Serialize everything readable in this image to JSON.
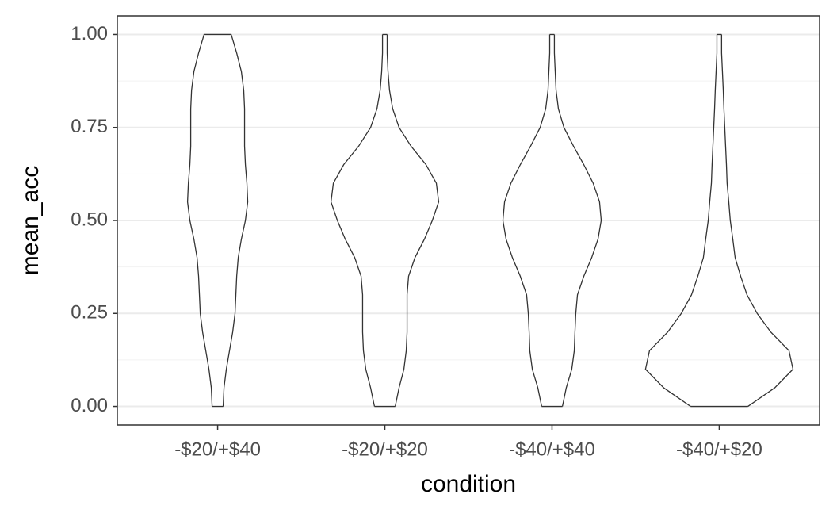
{
  "chart_data": {
    "type": "violin",
    "x_label": "condition",
    "y_label": "mean_acc",
    "categories": [
      "-$20/+$40",
      "-$20/+$20",
      "-$40/+$40",
      "-$40/+$20"
    ],
    "y": [
      0,
      0.05,
      0.1,
      0.15,
      0.2,
      0.25,
      0.3,
      0.35,
      0.4,
      0.45,
      0.5,
      0.55,
      0.6,
      0.65,
      0.7,
      0.75,
      0.8,
      0.85,
      0.9,
      0.95,
      1.0
    ],
    "violins": [
      [
        0.033,
        0.038,
        0.052,
        0.071,
        0.09,
        0.104,
        0.109,
        0.114,
        0.123,
        0.142,
        0.166,
        0.18,
        0.175,
        0.166,
        0.161,
        0.161,
        0.161,
        0.156,
        0.142,
        0.114,
        0.081
      ],
      [
        0.062,
        0.085,
        0.114,
        0.128,
        0.133,
        0.133,
        0.133,
        0.142,
        0.18,
        0.237,
        0.284,
        0.322,
        0.308,
        0.246,
        0.156,
        0.085,
        0.047,
        0.028,
        0.019,
        0.014,
        0.014
      ],
      [
        0.062,
        0.085,
        0.118,
        0.133,
        0.137,
        0.142,
        0.152,
        0.19,
        0.237,
        0.275,
        0.294,
        0.284,
        0.246,
        0.19,
        0.128,
        0.071,
        0.038,
        0.024,
        0.019,
        0.014,
        0.014
      ],
      [
        0.171,
        0.332,
        0.441,
        0.417,
        0.308,
        0.227,
        0.166,
        0.128,
        0.095,
        0.081,
        0.066,
        0.057,
        0.047,
        0.043,
        0.038,
        0.033,
        0.028,
        0.024,
        0.019,
        0.014,
        0.014
      ]
    ],
    "outline_color": "#333333",
    "ylim": [
      -0.05,
      1.05
    ],
    "yticks": [
      {
        "value": 0,
        "label": "0.00"
      },
      {
        "value": 0.25,
        "label": "0.25"
      },
      {
        "value": 0.5,
        "label": "0.50"
      },
      {
        "value": 0.75,
        "label": "0.75"
      },
      {
        "value": 1,
        "label": "1.00"
      }
    ],
    "minor_yticks": [
      0.125,
      0.375,
      0.625,
      0.875
    ],
    "grid": true
  }
}
